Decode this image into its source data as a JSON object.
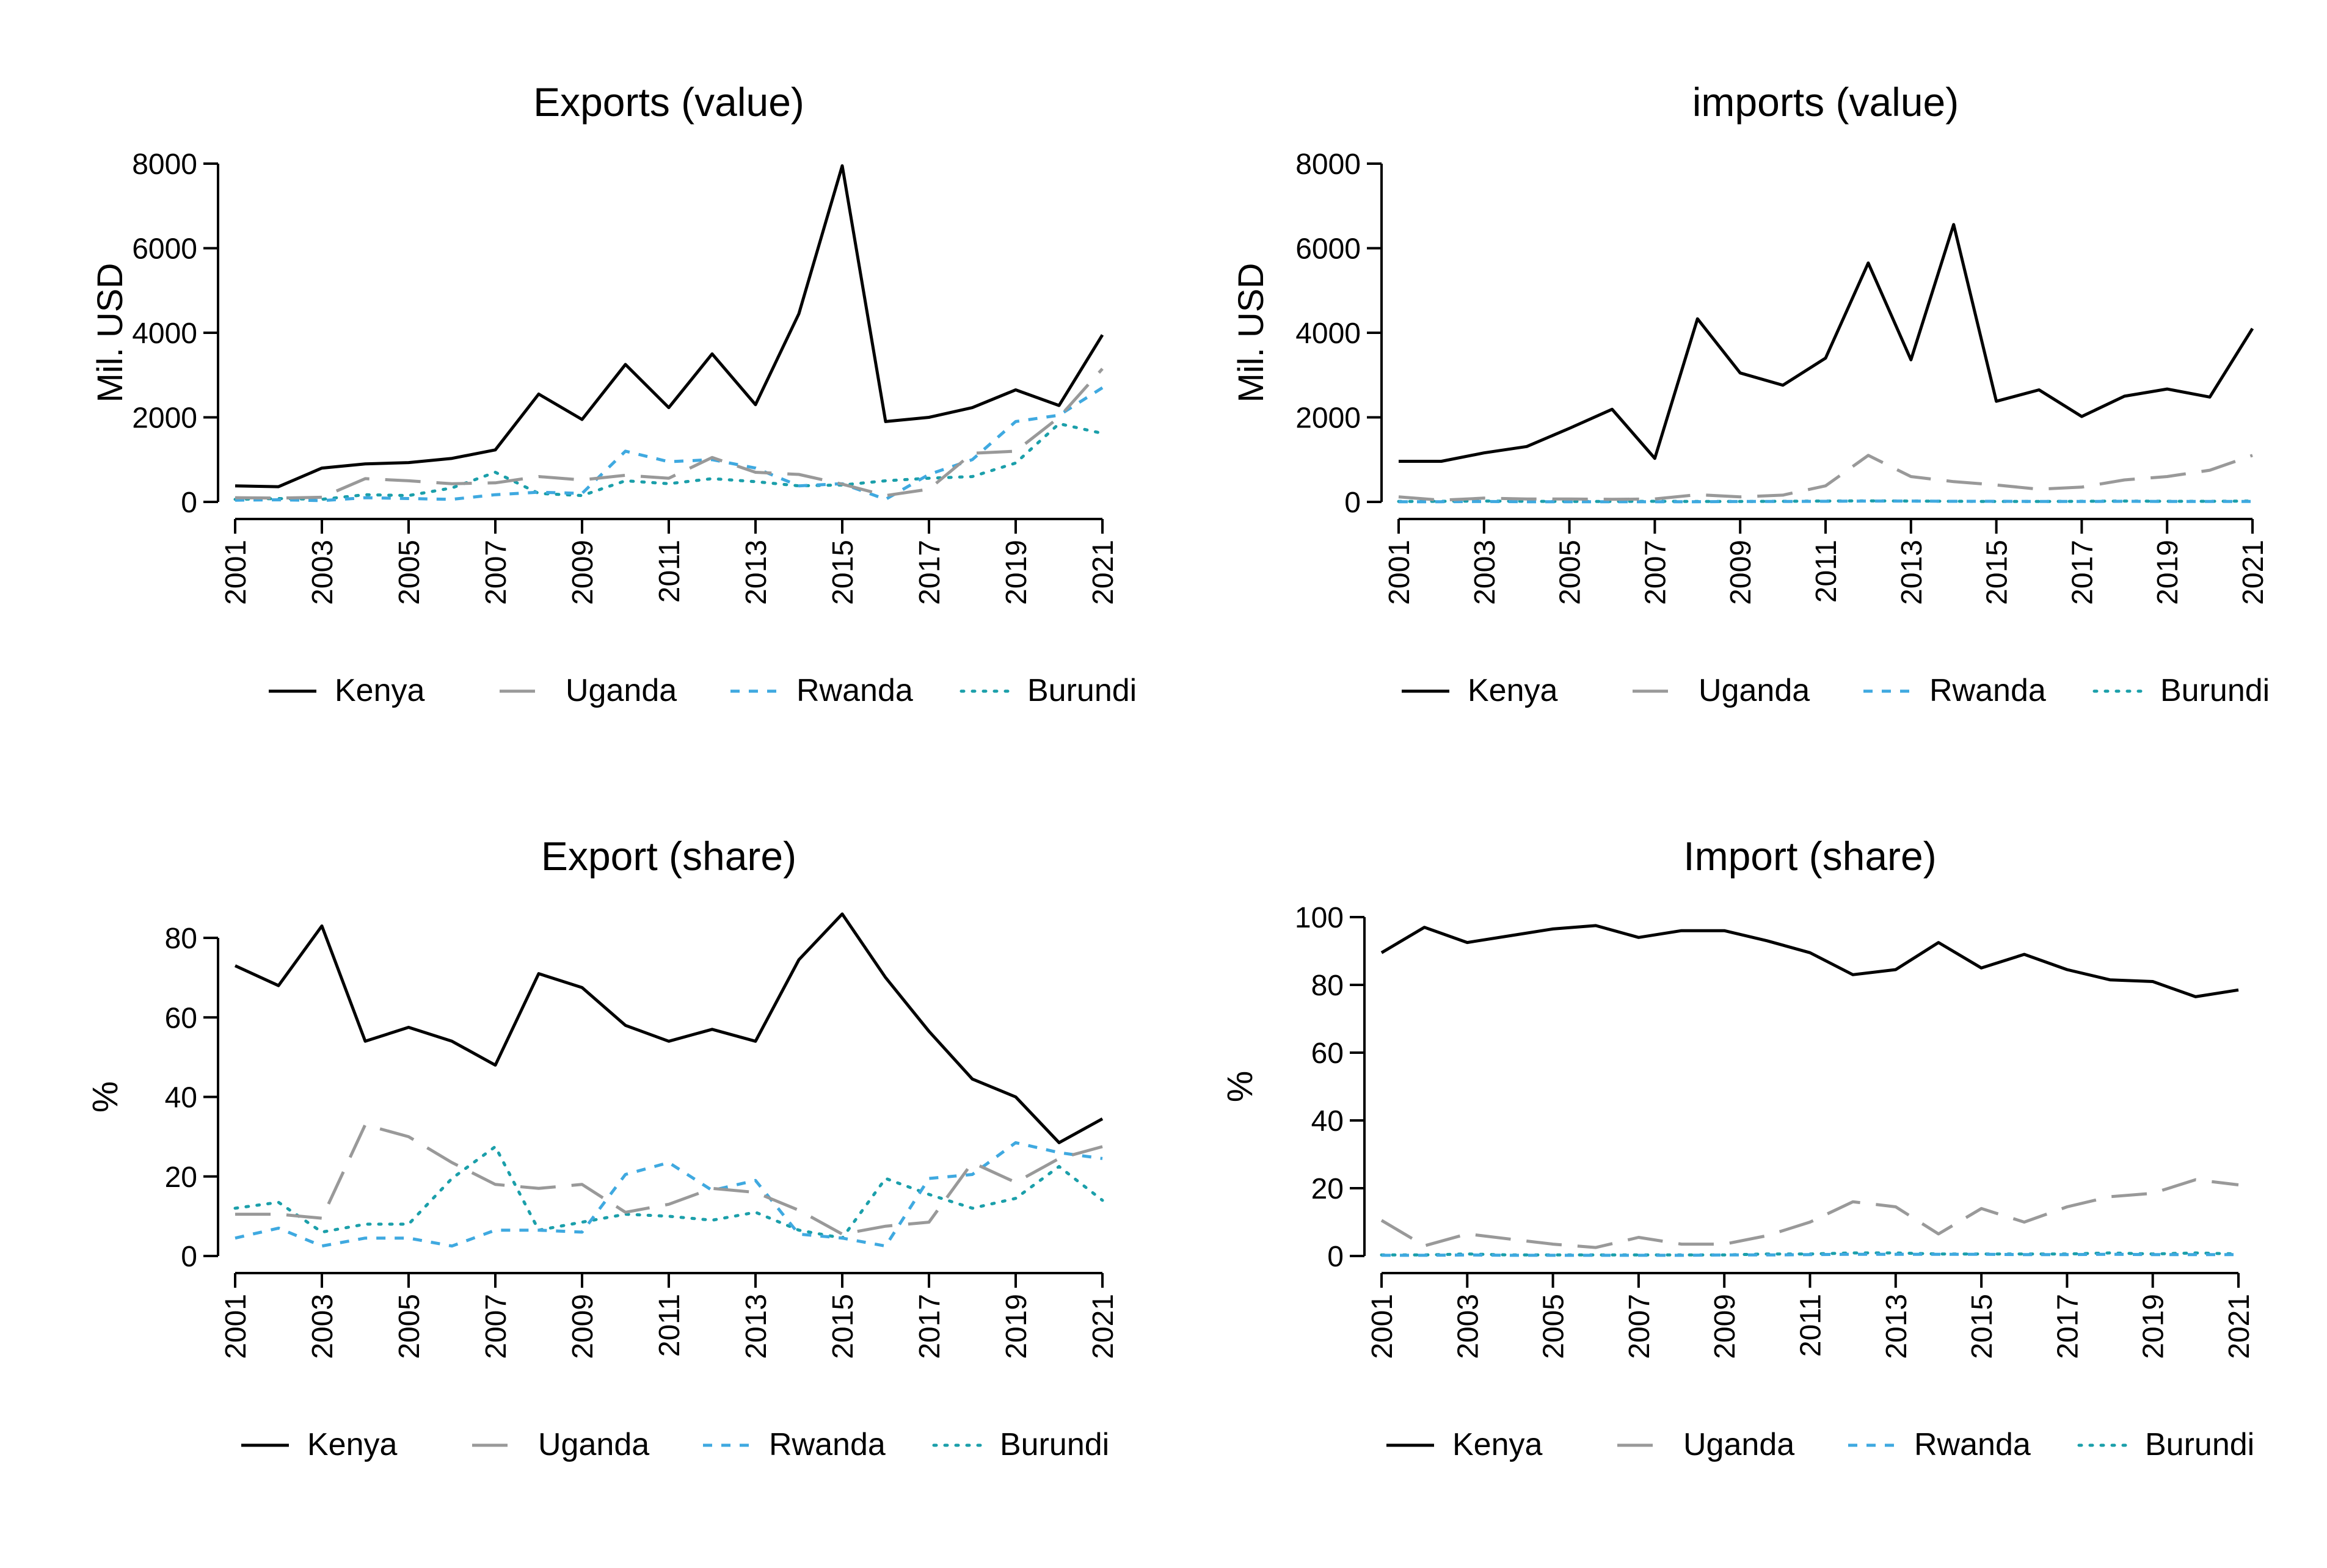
{
  "colors": {
    "Kenya": "#000000",
    "Uganda": "#999999",
    "Rwanda": "#3fa9e0",
    "Burundi": "#1b9faa"
  },
  "legend": [
    "Kenya",
    "Uganda",
    "Rwanda",
    "Burundi"
  ],
  "chart_data": [
    {
      "type": "line",
      "title": "Exports (value)",
      "ylabel": "Mil. USD",
      "xlabel": "",
      "ylim": [
        0,
        8000
      ],
      "yticks": [
        0,
        2000,
        4000,
        6000,
        8000
      ],
      "xticks": [
        2001,
        2003,
        2005,
        2007,
        2009,
        2011,
        2013,
        2015,
        2017,
        2019,
        2021
      ],
      "x": [
        2001,
        2002,
        2003,
        2004,
        2005,
        2006,
        2007,
        2008,
        2009,
        2010,
        2011,
        2012,
        2013,
        2014,
        2015,
        2016,
        2017,
        2018,
        2019,
        2020,
        2021
      ],
      "series": [
        {
          "name": "Kenya",
          "values": [
            380,
            360,
            800,
            900,
            930,
            1030,
            1230,
            2550,
            1950,
            3250,
            2230,
            3500,
            2300,
            4450,
            7950,
            1900,
            2000,
            2230,
            2650,
            2280,
            3950
          ]
        },
        {
          "name": "Uganda",
          "values": [
            100,
            90,
            110,
            550,
            500,
            430,
            450,
            600,
            520,
            630,
            560,
            1050,
            700,
            650,
            420,
            150,
            300,
            1150,
            1200,
            2000,
            3150
          ]
        },
        {
          "name": "Rwanda",
          "values": [
            40,
            50,
            30,
            100,
            80,
            60,
            170,
            230,
            200,
            1200,
            950,
            1000,
            800,
            380,
            430,
            60,
            650,
            1000,
            1900,
            2050,
            2700
          ]
        },
        {
          "name": "Burundi",
          "values": [
            60,
            80,
            60,
            170,
            150,
            330,
            700,
            200,
            150,
            500,
            430,
            550,
            480,
            380,
            400,
            500,
            560,
            600,
            920,
            1850,
            1620
          ]
        }
      ]
    },
    {
      "type": "line",
      "title": "imports (value)",
      "ylabel": "Mil. USD",
      "xlabel": "",
      "ylim": [
        0,
        8000
      ],
      "yticks": [
        0,
        2000,
        4000,
        6000,
        8000
      ],
      "xticks": [
        2001,
        2003,
        2005,
        2007,
        2009,
        2011,
        2013,
        2015,
        2017,
        2019,
        2021
      ],
      "x": [
        2001,
        2002,
        2003,
        2004,
        2005,
        2006,
        2007,
        2008,
        2009,
        2010,
        2011,
        2012,
        2013,
        2014,
        2015,
        2016,
        2017,
        2018,
        2019,
        2020,
        2021
      ],
      "series": [
        {
          "name": "Kenya",
          "values": [
            960,
            960,
            1160,
            1310,
            1740,
            2190,
            1030,
            4330,
            3050,
            2760,
            3400,
            5650,
            3360,
            6560,
            2380,
            2650,
            2020,
            2500,
            2670,
            2480,
            4100
          ]
        },
        {
          "name": "Uganda",
          "values": [
            120,
            40,
            90,
            70,
            70,
            60,
            70,
            170,
            120,
            160,
            380,
            1100,
            600,
            480,
            400,
            300,
            350,
            520,
            600,
            750,
            1100
          ]
        },
        {
          "name": "Rwanda",
          "values": [
            5,
            5,
            10,
            5,
            5,
            5,
            5,
            5,
            10,
            10,
            15,
            20,
            20,
            15,
            15,
            10,
            10,
            15,
            10,
            10,
            10
          ]
        },
        {
          "name": "Burundi",
          "values": [
            10,
            15,
            20,
            15,
            10,
            10,
            15,
            10,
            10,
            15,
            20,
            25,
            20,
            15,
            10,
            10,
            15,
            20,
            15,
            15,
            20
          ]
        }
      ]
    },
    {
      "type": "line",
      "title": "Export (share)",
      "ylabel": "%",
      "xlabel": "",
      "ylim": [
        0,
        90
      ],
      "yticks": [
        0,
        20,
        40,
        60,
        80
      ],
      "xticks": [
        2001,
        2003,
        2005,
        2007,
        2009,
        2011,
        2013,
        2015,
        2017,
        2019,
        2021
      ],
      "x": [
        2001,
        2002,
        2003,
        2004,
        2005,
        2006,
        2007,
        2008,
        2009,
        2010,
        2011,
        2012,
        2013,
        2014,
        2015,
        2016,
        2017,
        2018,
        2019,
        2020,
        2021
      ],
      "series": [
        {
          "name": "Kenya",
          "values": [
            73,
            68,
            83,
            54,
            57.5,
            54,
            48,
            71,
            67.5,
            58,
            54,
            57,
            54,
            74.5,
            86,
            70,
            56.5,
            44.5,
            40,
            28.5,
            34.5
          ]
        },
        {
          "name": "Uganda",
          "values": [
            10.5,
            10.5,
            9.5,
            33,
            30,
            23.5,
            18,
            17,
            18,
            11,
            13,
            17,
            16,
            11.5,
            5.5,
            7.5,
            8.5,
            23.5,
            18.5,
            24.5,
            27.5
          ]
        },
        {
          "name": "Rwanda",
          "values": [
            4.5,
            7,
            2.5,
            4.5,
            4.5,
            2.5,
            6.5,
            6.5,
            6,
            20.5,
            23.5,
            16.5,
            19,
            5.5,
            4.5,
            2.5,
            19.5,
            20.5,
            28.5,
            26,
            24.5
          ]
        },
        {
          "name": "Burundi",
          "values": [
            12,
            13.5,
            6,
            8,
            8,
            19.5,
            27.5,
            6.5,
            8.5,
            10.5,
            10,
            9,
            11,
            6.5,
            4.5,
            19.5,
            15.5,
            12,
            14.5,
            22.5,
            14
          ]
        }
      ]
    },
    {
      "type": "line",
      "title": "Import (share)",
      "ylabel": "%",
      "xlabel": "",
      "ylim": [
        0,
        100
      ],
      "yticks": [
        0,
        20,
        40,
        60,
        80,
        100
      ],
      "xticks": [
        2001,
        2003,
        2005,
        2007,
        2009,
        2011,
        2013,
        2015,
        2017,
        2019,
        2021
      ],
      "x": [
        2001,
        2002,
        2003,
        2004,
        2005,
        2006,
        2007,
        2008,
        2009,
        2010,
        2011,
        2012,
        2013,
        2014,
        2015,
        2016,
        2017,
        2018,
        2019,
        2020,
        2021
      ],
      "series": [
        {
          "name": "Kenya",
          "values": [
            89.5,
            97,
            92.5,
            94.5,
            96.5,
            97.5,
            94,
            96,
            96,
            93,
            89.5,
            83,
            84.5,
            92.5,
            85,
            89,
            84.5,
            81.5,
            81,
            76.5,
            78.5
          ]
        },
        {
          "name": "Uganda",
          "values": [
            10.5,
            3,
            6.5,
            5,
            3.5,
            2.5,
            5.5,
            3.5,
            3.5,
            6,
            10,
            16,
            14.5,
            6.5,
            14,
            10,
            14.5,
            17.5,
            18.5,
            22.5,
            21
          ]
        },
        {
          "name": "Rwanda",
          "values": [
            0.2,
            0.2,
            0.3,
            0.2,
            0.2,
            0.2,
            0.2,
            0.2,
            0.3,
            0.3,
            0.4,
            0.5,
            0.5,
            0.5,
            0.5,
            0.4,
            0.4,
            0.5,
            0.4,
            0.4,
            0.4
          ]
        },
        {
          "name": "Burundi",
          "values": [
            0.3,
            0.3,
            0.6,
            0.3,
            0.3,
            0.3,
            0.3,
            0.3,
            0.3,
            0.6,
            0.6,
            0.9,
            0.9,
            0.6,
            0.6,
            0.6,
            0.6,
            0.9,
            0.6,
            0.9,
            0.6
          ]
        }
      ]
    }
  ]
}
